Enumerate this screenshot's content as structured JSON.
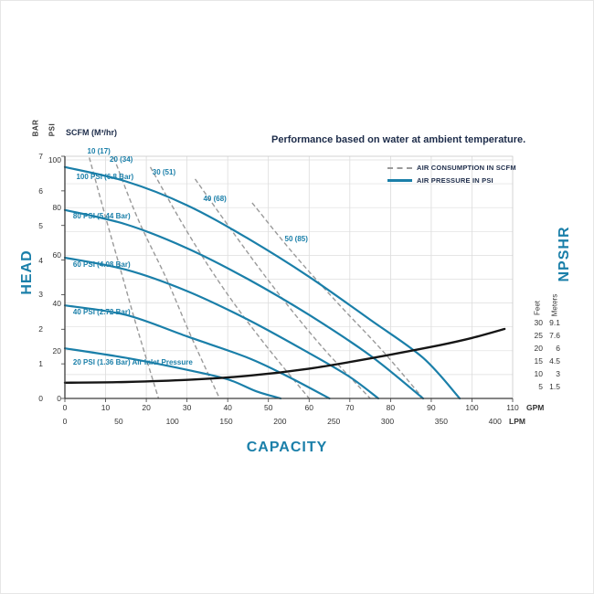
{
  "chart_data": {
    "type": "line",
    "title": "Performance based on water at ambient temperature.",
    "air_axis_header": "SCFM (M³/hr)",
    "grid": true,
    "legend_position": "top-right",
    "x_axis": {
      "label": "CAPACITY",
      "units": [
        "GPM",
        "LPM"
      ],
      "gpm_ticks": [
        0,
        10,
        20,
        30,
        40,
        50,
        60,
        70,
        80,
        90,
        100,
        110
      ],
      "lpm_ticks": [
        0,
        50,
        100,
        150,
        200,
        250,
        300,
        350,
        400
      ],
      "gpm_range": [
        0,
        110
      ]
    },
    "y_axis": {
      "label": "HEAD",
      "units": [
        "BAR",
        "PSI"
      ],
      "bar_ticks": [
        0,
        1,
        2,
        3,
        4,
        5,
        6,
        7
      ],
      "psi_ticks": [
        0,
        20,
        40,
        60,
        80,
        100
      ],
      "bar_range": [
        0,
        7
      ]
    },
    "npshr_axis": {
      "label": "NPSHR",
      "units": [
        "Feet",
        "Meters"
      ],
      "feet_ticks": [
        30,
        25,
        20,
        15,
        10,
        5
      ],
      "meters_ticks": [
        "9.1",
        "7.6",
        "6",
        "4.5",
        "3",
        "1.5"
      ]
    },
    "legend": [
      {
        "label": "AIR CONSUMPTION IN SCFM",
        "style": "dashed",
        "color": "#9a9a9a"
      },
      {
        "label": "AIR PRESSURE IN PSI",
        "style": "solid",
        "color": "#1a7fa9"
      }
    ],
    "air_pressure_curves": [
      {
        "label": "100 PSI (6.8 Bar)",
        "label_at": [
          2.8,
          93
        ],
        "points": [
          [
            0,
            97
          ],
          [
            15,
            91
          ],
          [
            30,
            81
          ],
          [
            45,
            67
          ],
          [
            60,
            51
          ],
          [
            75,
            33
          ],
          [
            88,
            17
          ],
          [
            97,
            0
          ]
        ]
      },
      {
        "label": "80 PSI (5.44 Bar)",
        "label_at": [
          2,
          76.5
        ],
        "points": [
          [
            0,
            79
          ],
          [
            15,
            73
          ],
          [
            30,
            63
          ],
          [
            45,
            50
          ],
          [
            60,
            35
          ],
          [
            75,
            18
          ],
          [
            88,
            0
          ]
        ]
      },
      {
        "label": "60 PSI (4.08 Bar)",
        "label_at": [
          2,
          56.5
        ],
        "points": [
          [
            0,
            59
          ],
          [
            15,
            54
          ],
          [
            30,
            45
          ],
          [
            45,
            33
          ],
          [
            60,
            19
          ],
          [
            70,
            9
          ],
          [
            77,
            0
          ]
        ]
      },
      {
        "label": "40 PSI (2.72 Bar)",
        "label_at": [
          2,
          36.5
        ],
        "points": [
          [
            0,
            39
          ],
          [
            15,
            35
          ],
          [
            30,
            26
          ],
          [
            45,
            17
          ],
          [
            55,
            9
          ],
          [
            65,
            0
          ]
        ]
      },
      {
        "label": "20 PSI (1.36 Bar) Air Inlet Pressure",
        "label_at": [
          2,
          15.5
        ],
        "points": [
          [
            0,
            21
          ],
          [
            15,
            17
          ],
          [
            30,
            12
          ],
          [
            40,
            8
          ],
          [
            47,
            3
          ],
          [
            53,
            0
          ]
        ]
      }
    ],
    "air_consumption_curves": [
      {
        "label": "10 (17)",
        "label_at": [
          5.5,
          104
        ],
        "points": [
          [
            6,
            101
          ],
          [
            10,
            76
          ],
          [
            14,
            52
          ],
          [
            18,
            28
          ],
          [
            23,
            0
          ]
        ]
      },
      {
        "label": "20 (34)",
        "label_at": [
          11,
          100.5
        ],
        "points": [
          [
            12,
            101
          ],
          [
            18,
            75
          ],
          [
            25,
            50
          ],
          [
            31,
            26
          ],
          [
            38,
            0
          ]
        ]
      },
      {
        "label": "30 (51)",
        "label_at": [
          21.5,
          95
        ],
        "points": [
          [
            21,
            97
          ],
          [
            30,
            70
          ],
          [
            39,
            46
          ],
          [
            49,
            23
          ],
          [
            60,
            0
          ]
        ]
      },
      {
        "label": "40 (68)",
        "label_at": [
          34,
          84
        ],
        "points": [
          [
            32,
            92
          ],
          [
            42,
            68
          ],
          [
            52,
            45
          ],
          [
            63,
            22
          ],
          [
            75,
            0
          ]
        ]
      },
      {
        "label": "50 (85)",
        "label_at": [
          54,
          67
        ],
        "points": [
          [
            46,
            82
          ],
          [
            56,
            61
          ],
          [
            67,
            40
          ],
          [
            78,
            20
          ],
          [
            88,
            0
          ]
        ]
      }
    ],
    "npshr_curve": {
      "label": "NPSHR",
      "units": "feet vs GPM",
      "points": [
        [
          0,
          6.5
        ],
        [
          15,
          6.8
        ],
        [
          30,
          7.6
        ],
        [
          45,
          9.2
        ],
        [
          60,
          12
        ],
        [
          75,
          16
        ],
        [
          90,
          20.5
        ],
        [
          100,
          24
        ],
        [
          108,
          27.5
        ]
      ]
    }
  }
}
